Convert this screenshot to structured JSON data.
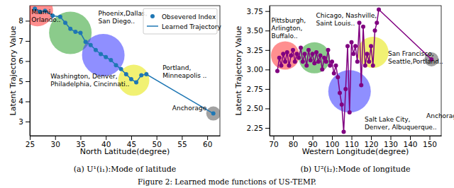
{
  "chart_data": [
    {
      "type": "line",
      "subtitle": "(a) U¹(i₁):Mode of latitude",
      "x_label": "North Latitude(degree)",
      "y_label": "Latent Trajectory Value",
      "xlim": [
        25,
        62.5
      ],
      "ylim": [
        2.3,
        8.75
      ],
      "xticks": [
        25,
        30,
        35,
        40,
        45,
        50,
        55,
        60
      ],
      "yticks": [
        3,
        4,
        5,
        6,
        7,
        8
      ],
      "grid": false,
      "legend": "upper right",
      "series": [
        {
          "name": "Obsevered Index",
          "type": "scatter",
          "color": "#1f77b4",
          "marker": "circle",
          "x": [
            26,
            27,
            28,
            29.5,
            31,
            32,
            33,
            34,
            35,
            36,
            37,
            38,
            39,
            40,
            41,
            42,
            43,
            44,
            45,
            46,
            47,
            48,
            61.2
          ],
          "values": [
            8.6,
            8.45,
            8.5,
            8.25,
            8.2,
            7.9,
            7.6,
            7.45,
            7.4,
            6.95,
            6.8,
            6.55,
            6.35,
            6.2,
            6.05,
            5.8,
            5.6,
            5.35,
            5.1,
            4.95,
            5.3,
            5.35,
            3.4
          ]
        },
        {
          "name": "Learned Trajectory",
          "type": "line",
          "color": "#1f77b4",
          "x": [
            26,
            27,
            28,
            29.5,
            31,
            32,
            33,
            34,
            35,
            36,
            37,
            38,
            39,
            40,
            41,
            42,
            43,
            44,
            45,
            46,
            47,
            48,
            61.2
          ],
          "values": [
            8.6,
            8.45,
            8.5,
            8.25,
            8.2,
            7.9,
            7.6,
            7.45,
            7.4,
            6.95,
            6.8,
            6.55,
            6.35,
            6.2,
            6.05,
            5.8,
            5.6,
            5.35,
            5.1,
            4.95,
            5.3,
            5.35,
            3.4
          ]
        }
      ],
      "clusters": [
        {
          "x": 26.5,
          "y": 8.5,
          "color": "#ff3333",
          "label": [
            "Miami,",
            "Orlando.."
          ],
          "label_x": 25.3,
          "label_y": 8.32
        },
        {
          "x": 33,
          "y": 7.4,
          "color": "#2ca02c",
          "label": [
            "Phoenix,Dallas,",
            "San Diego.."
          ],
          "label_x": 38.5,
          "label_y": 8.25
        },
        {
          "x": 39.5,
          "y": 6.3,
          "color": "#3333ff",
          "label": [
            "Washington, Denver,",
            "Philadelphia, Cincinnati.."
          ],
          "label_x": 29.1,
          "label_y": 5.13
        },
        {
          "x": 45.5,
          "y": 5.05,
          "color": "#e6e600",
          "label": [
            "Portland,",
            "Minneapolis .."
          ],
          "label_x": 51.2,
          "label_y": 5.55
        },
        {
          "x": 61.2,
          "y": 3.4,
          "color": "#555555",
          "label": [
            "Anchorage"
          ],
          "label_x": 53.1,
          "label_y": 3.56
        }
      ]
    },
    {
      "type": "line",
      "subtitle": "(b) U²(i₂):Mode of longitude",
      "x_label": "Western Longitude(degree)",
      "y_label": "Latent Trajectory Value",
      "xlim": [
        68,
        156
      ],
      "ylim": [
        2.15,
        3.82
      ],
      "xticks": [
        70,
        80,
        90,
        100,
        110,
        120,
        130,
        140,
        150
      ],
      "yticks": [
        2.25,
        {
          "value": 2.5,
          "label": "2.50"
        },
        2.75,
        {
          "value": 3,
          "label": "3.00"
        },
        3.25,
        {
          "value": 3.5,
          "label": "3.50"
        },
        3.75
      ],
      "grid": false,
      "series": [
        {
          "type": "line",
          "color": "#800080",
          "marker": "circle",
          "x": [
            72,
            73,
            74,
            75,
            76,
            77,
            78,
            79,
            80,
            81,
            82,
            83,
            84,
            85,
            86,
            87,
            88,
            89,
            90,
            91,
            92,
            93,
            94,
            95,
            96,
            97,
            98,
            99,
            100,
            101,
            102,
            103,
            104,
            105,
            106,
            107,
            108,
            109,
            110,
            111,
            112,
            113,
            114,
            115,
            116,
            117,
            118,
            119,
            120,
            121,
            122,
            123,
            124,
            151
          ],
          "values": [
            2.98,
            3.15,
            3.05,
            3.2,
            3.1,
            3.22,
            3.05,
            3.18,
            3.25,
            3.1,
            3.2,
            3.15,
            3.28,
            3.1,
            3.2,
            3.05,
            3.25,
            3.12,
            3.2,
            3.08,
            3.22,
            3.1,
            3.18,
            3.0,
            3.15,
            3.1,
            3.25,
            3.05,
            3.1,
            2.95,
            3.05,
            2.9,
            2.7,
            2.55,
            2.2,
            2.75,
            3.3,
            2.45,
            3.35,
            3.2,
            3.3,
            3.1,
            3.6,
            2.8,
            3.55,
            3.05,
            3.2,
            3.1,
            3.3,
            3.05,
            3.5,
            3.6,
            3.77,
            3.13
          ]
        }
      ],
      "clusters": [
        {
          "x": 76,
          "y": 3.18,
          "color": "#ff3333",
          "label": [
            "Pittsburgh,",
            "Arlington,",
            "Buffalo.."
          ],
          "label_x": 68.9,
          "label_y": 3.6
        },
        {
          "x": 91,
          "y": 3.15,
          "color": "#2ca02c",
          "label": [
            "Chicago, Nashville,",
            "Saint Louis.."
          ],
          "label_x": 91.8,
          "label_y": 3.67
        },
        {
          "x": 109,
          "y": 2.72,
          "color": "#3333ff",
          "label": [
            "Salt Lake City,",
            "Denver, Albuquerque.."
          ],
          "label_x": 116.7,
          "label_y": 2.33
        },
        {
          "x": 121,
          "y": 3.22,
          "color": "#e6e600",
          "label": [
            "San Francisco,",
            "Seattle,Portland.."
          ],
          "label_x": 128.7,
          "label_y": 3.18
        },
        {
          "x": 151,
          "y": 3.13,
          "color": "#555555",
          "label": [
            "Anchorage"
          ],
          "label_x": 148.4,
          "label_y": 2.38
        }
      ]
    }
  ],
  "caption": "Figure 2: Learned mode functions of US-TEMP."
}
